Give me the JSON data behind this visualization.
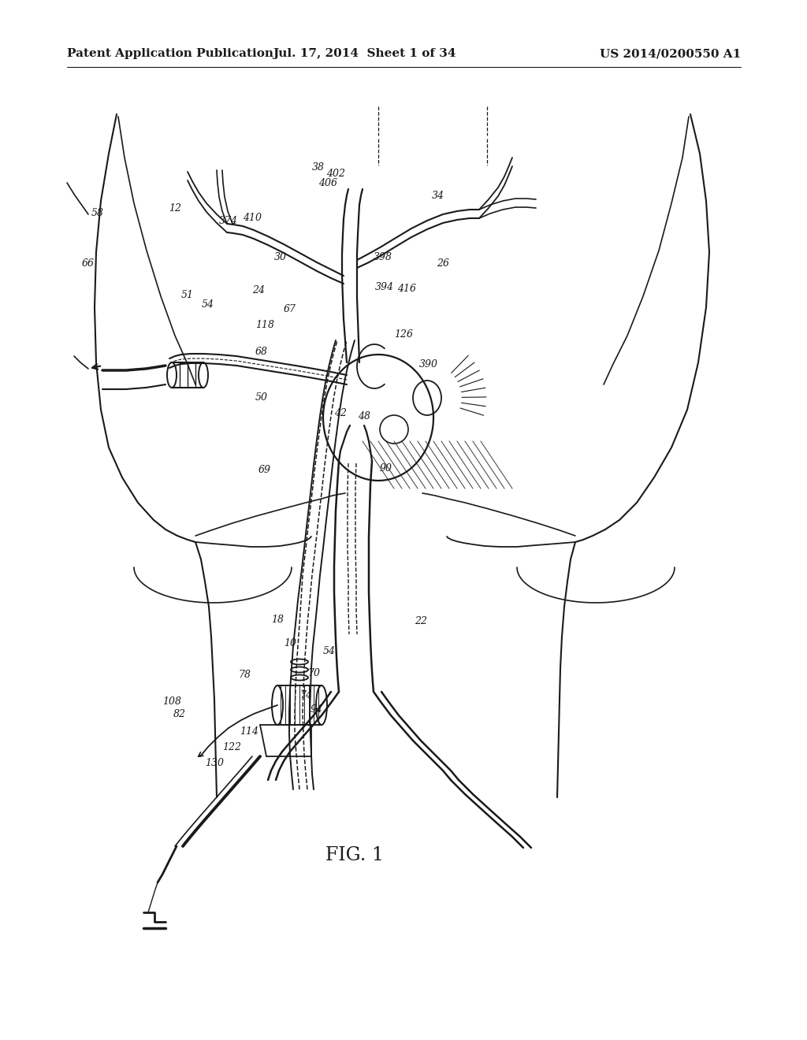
{
  "header_left": "Patent Application Publication",
  "header_middle": "Jul. 17, 2014  Sheet 1 of 34",
  "header_right": "US 2014/0200550 A1",
  "figure_label": "FIG. 1",
  "bg": "#ffffff",
  "lc": "#1a1a1a"
}
